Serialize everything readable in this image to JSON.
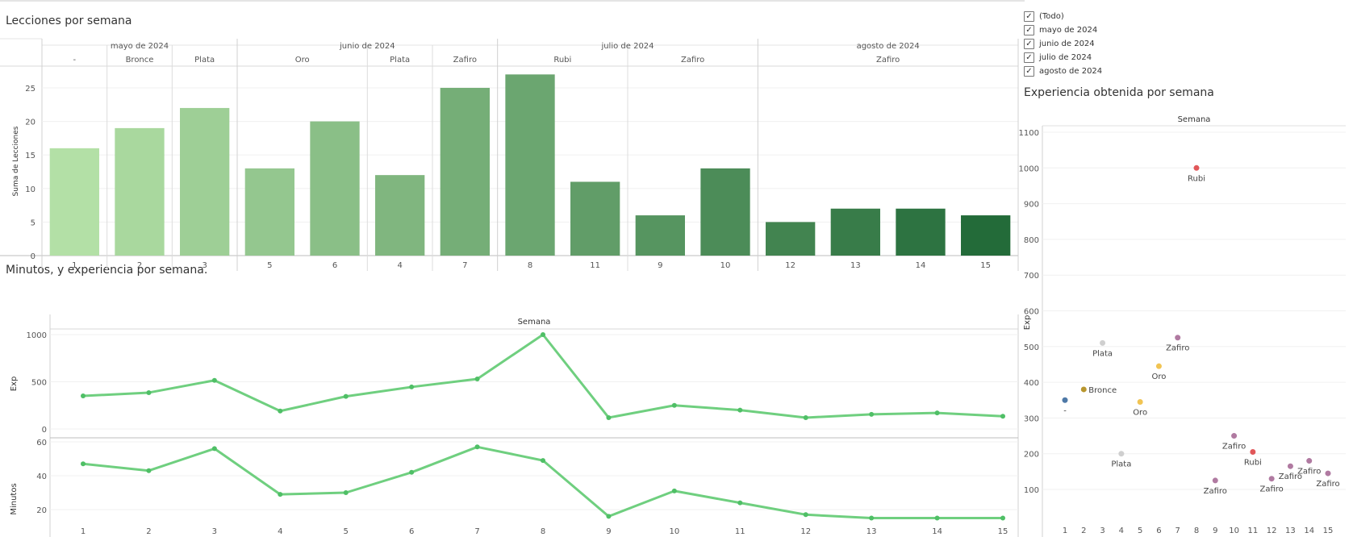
{
  "filter": {
    "items": [
      {
        "label": "(Todo)",
        "checked": true
      },
      {
        "label": "mayo de 2024",
        "checked": true
      },
      {
        "label": "junio de 2024",
        "checked": true
      },
      {
        "label": "julio de 2024",
        "checked": true
      },
      {
        "label": "agosto de 2024",
        "checked": true
      }
    ]
  },
  "chart_data": [
    {
      "id": "lecciones",
      "type": "bar",
      "title": "Lecciones por semana",
      "ylabel": "Suma de Lecciones",
      "ylim": [
        0,
        28
      ],
      "yticks": [
        0,
        5,
        10,
        15,
        20,
        25
      ],
      "months": [
        {
          "label": "mayo de 2024",
          "groups": [
            {
              "label": "-",
              "bars": [
                {
                  "week": "1",
                  "value": 16
                }
              ]
            },
            {
              "label": "Bronce",
              "bars": [
                {
                  "week": "2",
                  "value": 19
                }
              ]
            },
            {
              "label": "Plata",
              "bars": [
                {
                  "week": "3",
                  "value": 22
                }
              ]
            }
          ]
        },
        {
          "label": "junio de 2024",
          "groups": [
            {
              "label": "Oro",
              "bars": [
                {
                  "week": "5",
                  "value": 13
                },
                {
                  "week": "6",
                  "value": 20
                }
              ]
            },
            {
              "label": "Plata",
              "bars": [
                {
                  "week": "4",
                  "value": 12
                }
              ]
            },
            {
              "label": "Zafiro",
              "bars": [
                {
                  "week": "7",
                  "value": 25
                }
              ]
            }
          ]
        },
        {
          "label": "julio de 2024",
          "groups": [
            {
              "label": "Rubi",
              "bars": [
                {
                  "week": "8",
                  "value": 27
                },
                {
                  "week": "11",
                  "value": 11
                }
              ]
            },
            {
              "label": "Zafiro",
              "bars": [
                {
                  "week": "9",
                  "value": 6
                },
                {
                  "week": "10",
                  "value": 13
                }
              ]
            }
          ]
        },
        {
          "label": "agosto de 2024",
          "groups": [
            {
              "label": "Zafiro",
              "bars": [
                {
                  "week": "12",
                  "value": 5
                },
                {
                  "week": "13",
                  "value": 7
                },
                {
                  "week": "14",
                  "value": 7
                },
                {
                  "week": "15",
                  "value": 6
                }
              ]
            }
          ]
        }
      ],
      "color_scale": [
        "#b3e0a6",
        "#236b39"
      ]
    },
    {
      "id": "minutos-exp",
      "type": "line",
      "title": "Minutos, y experiencia por semana.",
      "xlabel": "Semana",
      "x": [
        1,
        2,
        3,
        4,
        5,
        6,
        7,
        8,
        9,
        10,
        11,
        12,
        13,
        14,
        15
      ],
      "color": "#6fcf7f",
      "panels": [
        {
          "name": "Exp",
          "ylim": [
            -50,
            1050
          ],
          "yticks": [
            0,
            500,
            1000
          ],
          "values": [
            350,
            385,
            515,
            190,
            345,
            445,
            530,
            1000,
            120,
            250,
            200,
            120,
            155,
            170,
            135
          ]
        },
        {
          "name": "Minutos",
          "ylim": [
            0,
            63
          ],
          "yticks": [
            20,
            40,
            60
          ],
          "values": [
            47,
            43,
            56,
            29,
            30,
            42,
            57,
            49,
            16,
            31,
            24,
            17,
            15,
            15,
            15
          ]
        }
      ]
    },
    {
      "id": "experiencia",
      "type": "scatter",
      "title": "Experiencia obtenida por semana",
      "xlabel": "Semana",
      "ylabel": "Exp",
      "ylim": [
        0,
        1130
      ],
      "yticks": [
        100,
        200,
        300,
        400,
        500,
        600,
        700,
        800,
        900,
        1000,
        1100
      ],
      "xticks": [
        1,
        2,
        3,
        4,
        5,
        6,
        7,
        8,
        9,
        10,
        11,
        12,
        13,
        14,
        15
      ],
      "points": [
        {
          "week": 1,
          "exp": 350,
          "label": "-",
          "color": "#4e79a7",
          "pos": "below"
        },
        {
          "week": 2,
          "exp": 380,
          "label": "Bronce",
          "color": "#b8962e",
          "pos": "right"
        },
        {
          "week": 3,
          "exp": 510,
          "label": "Plata",
          "color": "#cfcfcf",
          "pos": "below"
        },
        {
          "week": 4,
          "exp": 200,
          "label": "Plata",
          "color": "#cfcfcf",
          "pos": "below"
        },
        {
          "week": 5,
          "exp": 345,
          "label": "Oro",
          "color": "#f1c453",
          "pos": "below"
        },
        {
          "week": 6,
          "exp": 445,
          "label": "Oro",
          "color": "#f1c453",
          "pos": "below"
        },
        {
          "week": 7,
          "exp": 525,
          "label": "Zafiro",
          "color": "#b07aa1",
          "pos": "below"
        },
        {
          "week": 8,
          "exp": 1000,
          "label": "Rubi",
          "color": "#e15759",
          "pos": "below"
        },
        {
          "week": 9,
          "exp": 125,
          "label": "Zafiro",
          "color": "#b07aa1",
          "pos": "below"
        },
        {
          "week": 10,
          "exp": 250,
          "label": "Zafiro",
          "color": "#b07aa1",
          "pos": "below"
        },
        {
          "week": 11,
          "exp": 205,
          "label": "Rubi",
          "color": "#e15759",
          "pos": "below"
        },
        {
          "week": 12,
          "exp": 130,
          "label": "Zafiro",
          "color": "#b07aa1",
          "pos": "below"
        },
        {
          "week": 13,
          "exp": 165,
          "label": "Zafiro",
          "color": "#b07aa1",
          "pos": "below"
        },
        {
          "week": 14,
          "exp": 180,
          "label": "Zafiro",
          "color": "#b07aa1",
          "pos": "below"
        },
        {
          "week": 15,
          "exp": 145,
          "label": "Zafiro",
          "color": "#b07aa1",
          "pos": "below"
        }
      ]
    }
  ]
}
